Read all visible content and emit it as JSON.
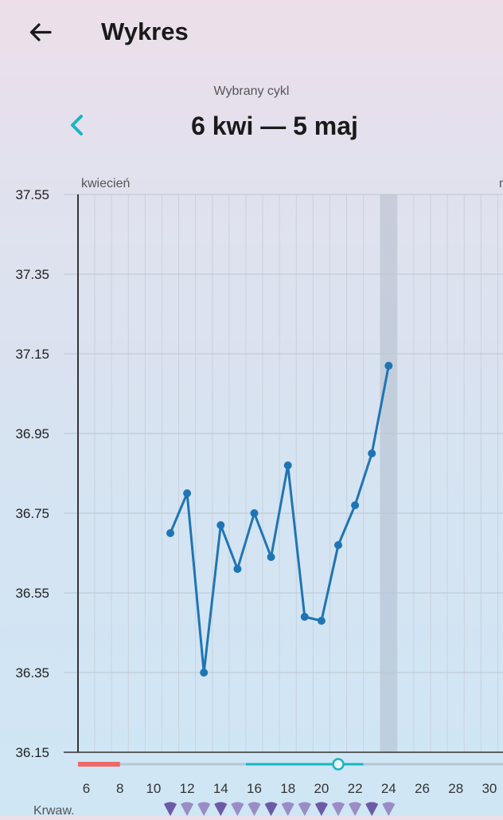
{
  "header": {
    "title": "Wykres",
    "back_icon": "arrow-left-icon"
  },
  "cycle": {
    "label": "Wybrany cykl",
    "range": "6 kwi — 5 maj",
    "prev_icon": "chevron-left-icon",
    "accent_color": "#19b5c2"
  },
  "chart_data": {
    "type": "line",
    "month_label": "kwiecień",
    "next_month_label_fragment": "m",
    "y_ticks": [
      "37.55",
      "37.35",
      "37.15",
      "36.95",
      "36.75",
      "36.55",
      "36.35",
      "36.15"
    ],
    "ylim": [
      36.15,
      37.55
    ],
    "x_ticks": [
      6,
      8,
      10,
      12,
      14,
      16,
      18,
      20,
      22,
      24,
      26,
      28,
      30
    ],
    "x_tick_labels": [
      "6",
      "8",
      "10",
      "12",
      "14",
      "16",
      "18",
      "20",
      "22",
      "24",
      "26",
      "28",
      "30"
    ],
    "xlim": [
      6,
      31
    ],
    "highlighted_day": 24,
    "series": [
      {
        "color": "#1f75b4",
        "x": [
          11,
          12,
          13,
          14,
          15,
          16,
          17,
          18,
          19,
          20,
          21,
          22,
          23,
          24
        ],
        "values": [
          36.7,
          36.8,
          36.35,
          36.72,
          36.61,
          36.75,
          36.64,
          36.87,
          36.49,
          36.48,
          36.67,
          36.77,
          36.9,
          37.12
        ]
      }
    ],
    "phases": [
      {
        "color": "#ef6868",
        "from": 6,
        "to": 8.5
      },
      {
        "color": "#19b5c2",
        "from": 16,
        "to": 23
      }
    ],
    "ovulation_day": 21,
    "bleeding_label": "Krwaw.",
    "bleeding_days": [
      11,
      12,
      13,
      14,
      15,
      16,
      17,
      18,
      19,
      20,
      21,
      22,
      23,
      24
    ],
    "grid": true
  }
}
